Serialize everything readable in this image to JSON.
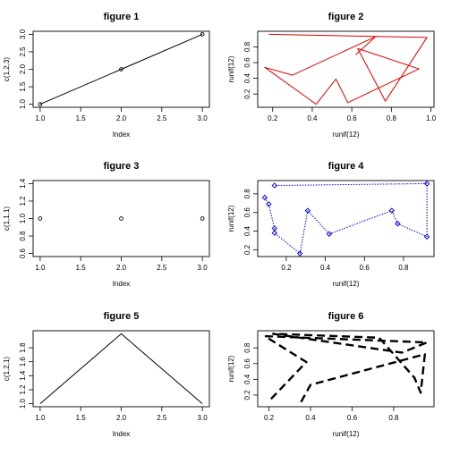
{
  "chart_data": [
    {
      "type": "line+points",
      "title": "figure 1",
      "xlabel": "Index",
      "ylabel": "c(1,2,3)",
      "x": [
        1,
        2,
        3
      ],
      "y": [
        1,
        2,
        3
      ],
      "xlim": [
        1,
        3
      ],
      "ylim": [
        1,
        3
      ],
      "xticks": [
        "1.0",
        "1.5",
        "2.0",
        "2.5",
        "3.0"
      ],
      "yticks": [
        "1.0",
        "1.5",
        "2.0",
        "2.5",
        "3.0"
      ],
      "color": "#000000",
      "line_style": "solid",
      "markers": true
    },
    {
      "type": "line",
      "title": "figure 2",
      "xlabel": "runif(12)",
      "ylabel": "runif(12)",
      "x": [
        0.18,
        0.98,
        0.77,
        0.63,
        0.94,
        0.58,
        0.52,
        0.42,
        0.16,
        0.3,
        0.72,
        0.62
      ],
      "y": [
        0.96,
        0.92,
        0.11,
        0.78,
        0.52,
        0.09,
        0.39,
        0.07,
        0.54,
        0.44,
        0.93,
        0.7
      ],
      "xlim": [
        0.16,
        0.98
      ],
      "ylim": [
        0.07,
        0.96
      ],
      "xticks": [
        "0.2",
        "0.4",
        "0.6",
        "0.8",
        "1.0"
      ],
      "yticks": [
        "0.2",
        "0.4",
        "0.6",
        "0.8"
      ],
      "color": "#dd0000",
      "line_style": "solid",
      "markers": false
    },
    {
      "type": "points",
      "title": "figure 3",
      "xlabel": "Index",
      "ylabel": "c(1,1,1)",
      "x": [
        1,
        2,
        3
      ],
      "y": [
        1,
        1,
        1
      ],
      "xlim": [
        1,
        3
      ],
      "ylim": [
        0.6,
        1.4
      ],
      "xticks": [
        "1.0",
        "1.5",
        "2.0",
        "2.5",
        "3.0"
      ],
      "yticks": [
        "0.6",
        "0.8",
        "1.0",
        "1.2",
        "1.4"
      ],
      "color": "#000000",
      "markers": true
    },
    {
      "type": "line+points",
      "title": "figure 4",
      "xlabel": "runif(12)",
      "ylabel": "runif(12)",
      "x": [
        0.09,
        0.11,
        0.14,
        0.14,
        0.27,
        0.31,
        0.42,
        0.74,
        0.77,
        0.92,
        0.92,
        0.14
      ],
      "y": [
        0.76,
        0.69,
        0.43,
        0.38,
        0.16,
        0.62,
        0.37,
        0.62,
        0.48,
        0.34,
        0.91,
        0.89
      ],
      "xlim": [
        0.09,
        0.92
      ],
      "ylim": [
        0.16,
        0.91
      ],
      "xticks": [
        "0.2",
        "0.4",
        "0.6",
        "0.8"
      ],
      "yticks": [
        "0.2",
        "0.4",
        "0.6",
        "0.8"
      ],
      "color": "#0000cc",
      "line_style": "dotted",
      "markers": true,
      "marker_shape": "diamond"
    },
    {
      "type": "line",
      "title": "figure 5",
      "xlabel": "Index",
      "ylabel": "c(1,2,1)",
      "x": [
        1,
        2,
        3
      ],
      "y": [
        1,
        2,
        1
      ],
      "xlim": [
        1,
        3
      ],
      "ylim": [
        1,
        2
      ],
      "xticks": [
        "1.0",
        "1.5",
        "2.0",
        "2.5",
        "3.0"
      ],
      "yticks": [
        "1.0",
        "1.2",
        "1.4",
        "1.6",
        "1.8"
      ],
      "color": "#000000",
      "line_style": "solid",
      "markers": false
    },
    {
      "type": "line",
      "title": "figure 6",
      "xlabel": "runif(12)",
      "ylabel": "runif(12)",
      "x": [
        0.21,
        0.38,
        0.18,
        0.96,
        0.84,
        0.22,
        0.73,
        0.9,
        0.93,
        0.95,
        0.4,
        0.35
      ],
      "y": [
        0.15,
        0.62,
        0.95,
        0.87,
        0.74,
        0.98,
        0.93,
        0.42,
        0.23,
        0.72,
        0.33,
        0.09
      ],
      "xlim": [
        0.18,
        0.96
      ],
      "ylim": [
        0.09,
        0.98
      ],
      "xticks": [
        "0.2",
        "0.4",
        "0.6",
        "0.8",
        "1.0"
      ],
      "yticks": [
        "0.2",
        "0.4",
        "0.6",
        "0.8"
      ],
      "color": "#000000",
      "line_style": "dashed",
      "markers": false
    }
  ]
}
